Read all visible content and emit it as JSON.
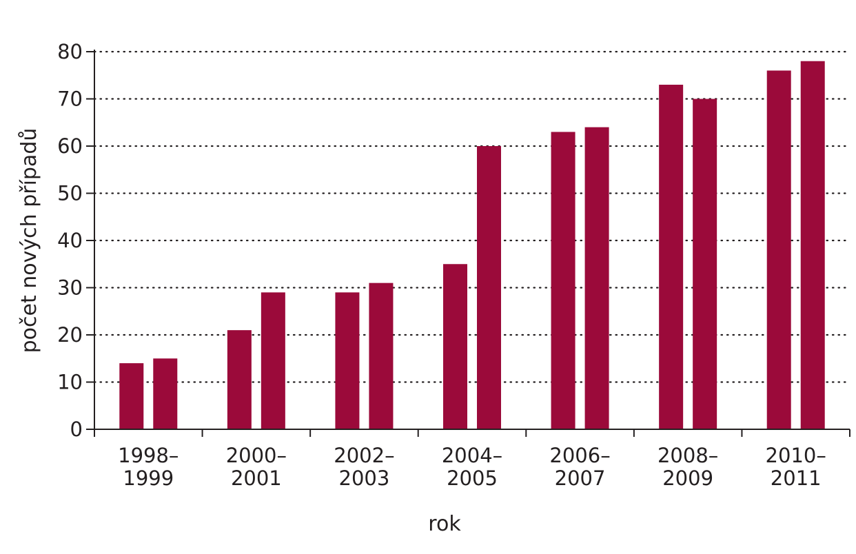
{
  "chart_data": {
    "type": "bar",
    "title": "",
    "xlabel": "rok",
    "ylabel": "počet nových případů",
    "ylim": [
      0,
      80
    ],
    "yticks": [
      0,
      10,
      20,
      30,
      40,
      50,
      60,
      70,
      80
    ],
    "grid": "horizontal dotted",
    "legend": "none",
    "categories": [
      {
        "line1": "1998–",
        "line2": "1999"
      },
      {
        "line1": "2000–",
        "line2": "2001"
      },
      {
        "line1": "2002–",
        "line2": "2003"
      },
      {
        "line1": "2004–",
        "line2": "2005"
      },
      {
        "line1": "2006–",
        "line2": "2007"
      },
      {
        "line1": "2008–",
        "line2": "2009"
      },
      {
        "line1": "2010–",
        "line2": "2011"
      }
    ],
    "series": [
      {
        "values": [
          14,
          21,
          29,
          35,
          63,
          73,
          76
        ]
      },
      {
        "values": [
          15,
          29,
          31,
          60,
          64,
          70,
          78
        ]
      }
    ],
    "colors": {
      "bar": "#9b0a3a",
      "axis": "#231f20",
      "grid": "#231f20"
    }
  }
}
